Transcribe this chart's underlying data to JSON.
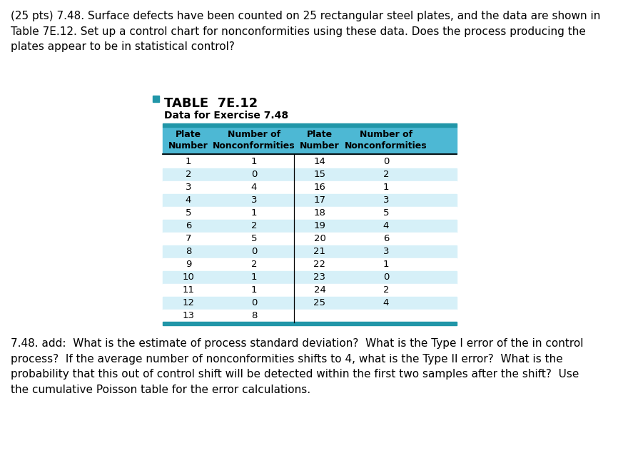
{
  "title_text": "(25 pts) 7.48. Surface defects have been counted on 25 rectangular steel plates, and the data are shown in\nTable 7E.12. Set up a control chart for nonconformities using these data. Does the process producing the\nplates appear to be in statistical control?",
  "table_title": "TABLE  7E.12",
  "table_subtitle": "Data for Exercise 7.48",
  "col_headers": [
    "Plate\nNumber",
    "Number of\nNonconformities",
    "Plate\nNumber",
    "Number of\nNonconformities"
  ],
  "plate_numbers_left": [
    1,
    2,
    3,
    4,
    5,
    6,
    7,
    8,
    9,
    10,
    11,
    12,
    13
  ],
  "nonconformities_left": [
    1,
    0,
    4,
    3,
    1,
    2,
    5,
    0,
    2,
    1,
    1,
    0,
    8
  ],
  "plate_numbers_right": [
    14,
    15,
    16,
    17,
    18,
    19,
    20,
    21,
    22,
    23,
    24,
    25,
    ""
  ],
  "nonconformities_right": [
    0,
    2,
    1,
    3,
    5,
    4,
    6,
    3,
    1,
    0,
    2,
    4,
    ""
  ],
  "footer_text": "7.48. add:  What is the estimate of process standard deviation?  What is the Type I error of the in control\nprocess?  If the average number of nonconformities shifts to 4, what is the Type II error?  What is the\nprobability that this out of control shift will be detected within the first two samples after the shift?  Use\nthe cumulative Poisson table for the error calculations.",
  "table_header_bg": "#4db8d4",
  "table_row_odd_bg": "#ffffff",
  "table_row_even_bg": "#d6f0f8",
  "table_border_color": "#2196a8",
  "title_square_color": "#2196a8",
  "header_text_color": "#000000",
  "body_text_color": "#000000",
  "background_color": "#ffffff",
  "font_size_body": 11,
  "font_size_table": 10,
  "font_size_title_table": 13
}
